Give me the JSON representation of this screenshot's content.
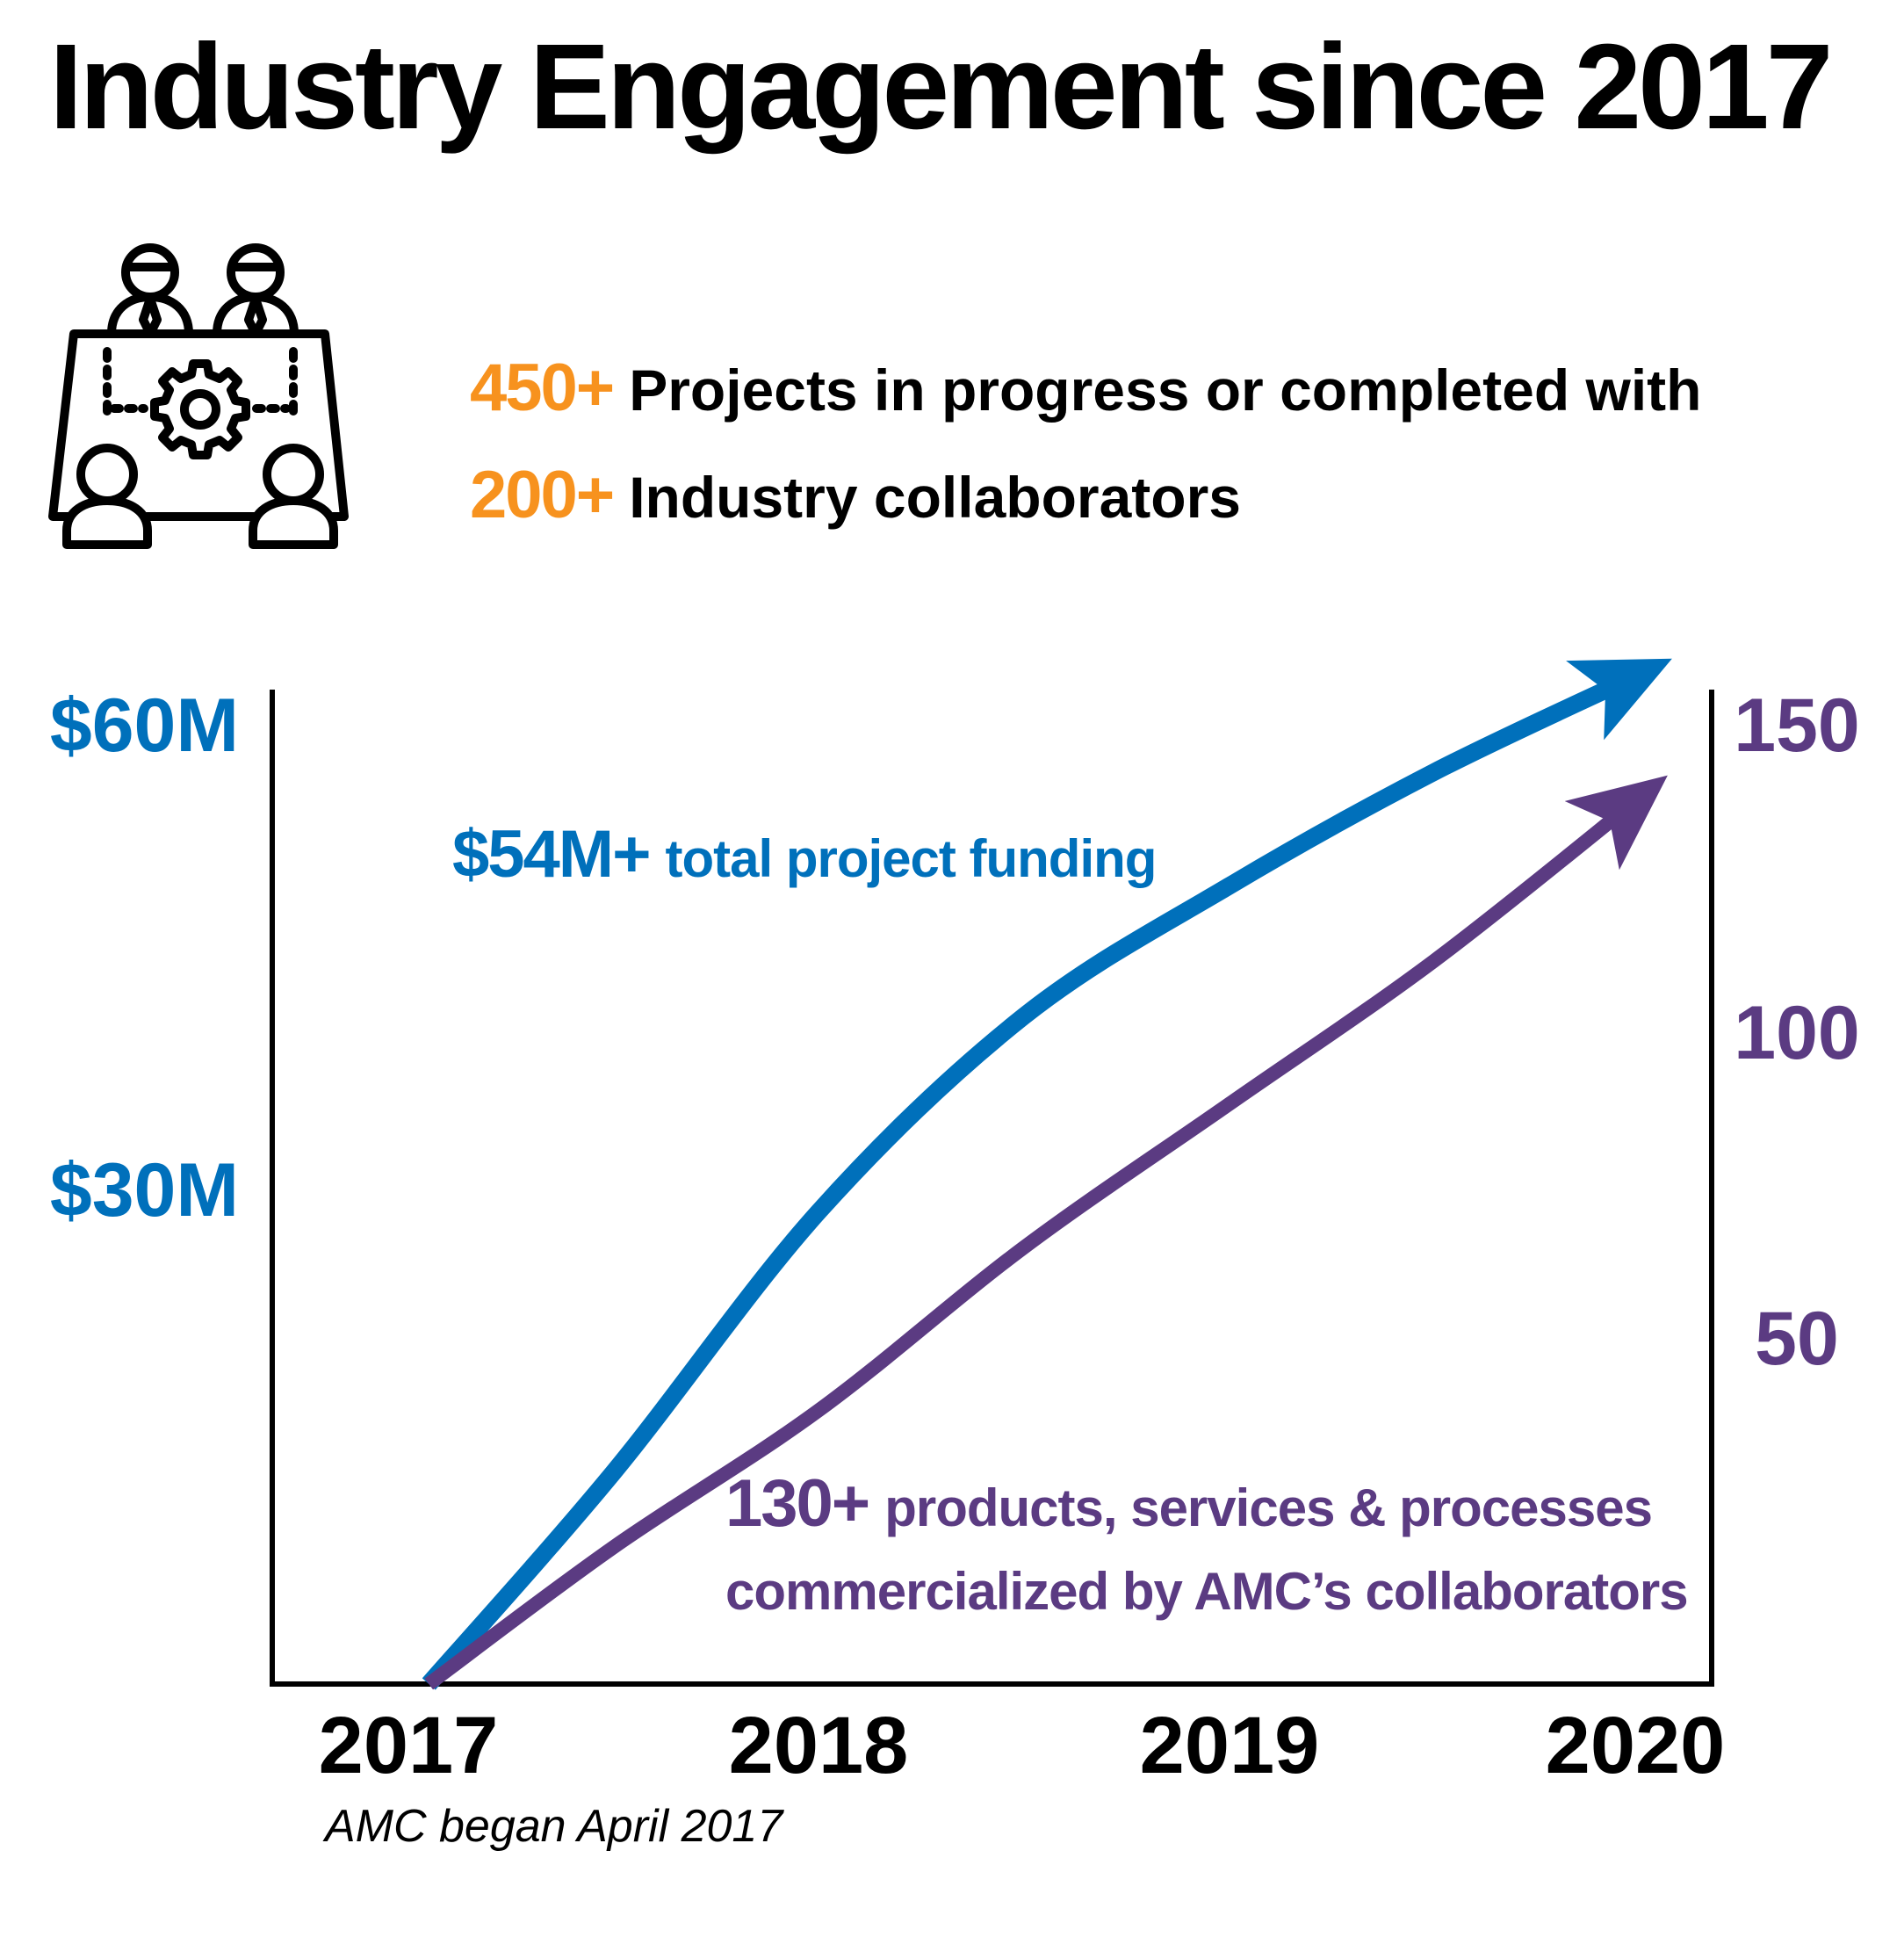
{
  "title": "Industry Engagement since 2017",
  "icon": "business-meeting-icon",
  "stats": [
    {
      "number": "450+",
      "text": "Projects in progress or completed with"
    },
    {
      "number": "200+",
      "text": "Industry collaborators"
    }
  ],
  "colors": {
    "funding": "#0070bb",
    "products": "#5b3b82",
    "stat_number": "#f7921e",
    "axis": "#000000"
  },
  "chart_data": {
    "type": "line",
    "x_labels": [
      "2017",
      "2018",
      "2019",
      "2020"
    ],
    "x_note": "AMC began April 2017",
    "left_axis": {
      "ticks": [
        "$60M",
        "$30M"
      ],
      "tick_values": [
        60,
        30
      ],
      "ylim": [
        0,
        60
      ]
    },
    "right_axis": {
      "ticks": [
        "150",
        "100",
        "50"
      ],
      "tick_values": [
        150,
        100,
        50
      ],
      "ylim": [
        0,
        150
      ]
    },
    "grid": false,
    "series": [
      {
        "axis": "left",
        "x": [
          2017.05,
          2017.5,
          2018.0,
          2018.5,
          2019.0,
          2019.5,
          2020.0
        ],
        "values": [
          0,
          13,
          29,
          41,
          49,
          56,
          62
        ]
      },
      {
        "axis": "right",
        "x": [
          2017.05,
          2017.5,
          2018.0,
          2018.5,
          2019.0,
          2019.5,
          2020.0
        ],
        "values": [
          0,
          21,
          42,
          67,
          89,
          111,
          136
        ]
      }
    ],
    "annotations": [
      {
        "number": "$54M+",
        "text": "total project funding"
      },
      {
        "number": "130+",
        "text_line1": "products, services & processes",
        "text_line2": "commercialized by AMC’s collaborators"
      }
    ]
  }
}
